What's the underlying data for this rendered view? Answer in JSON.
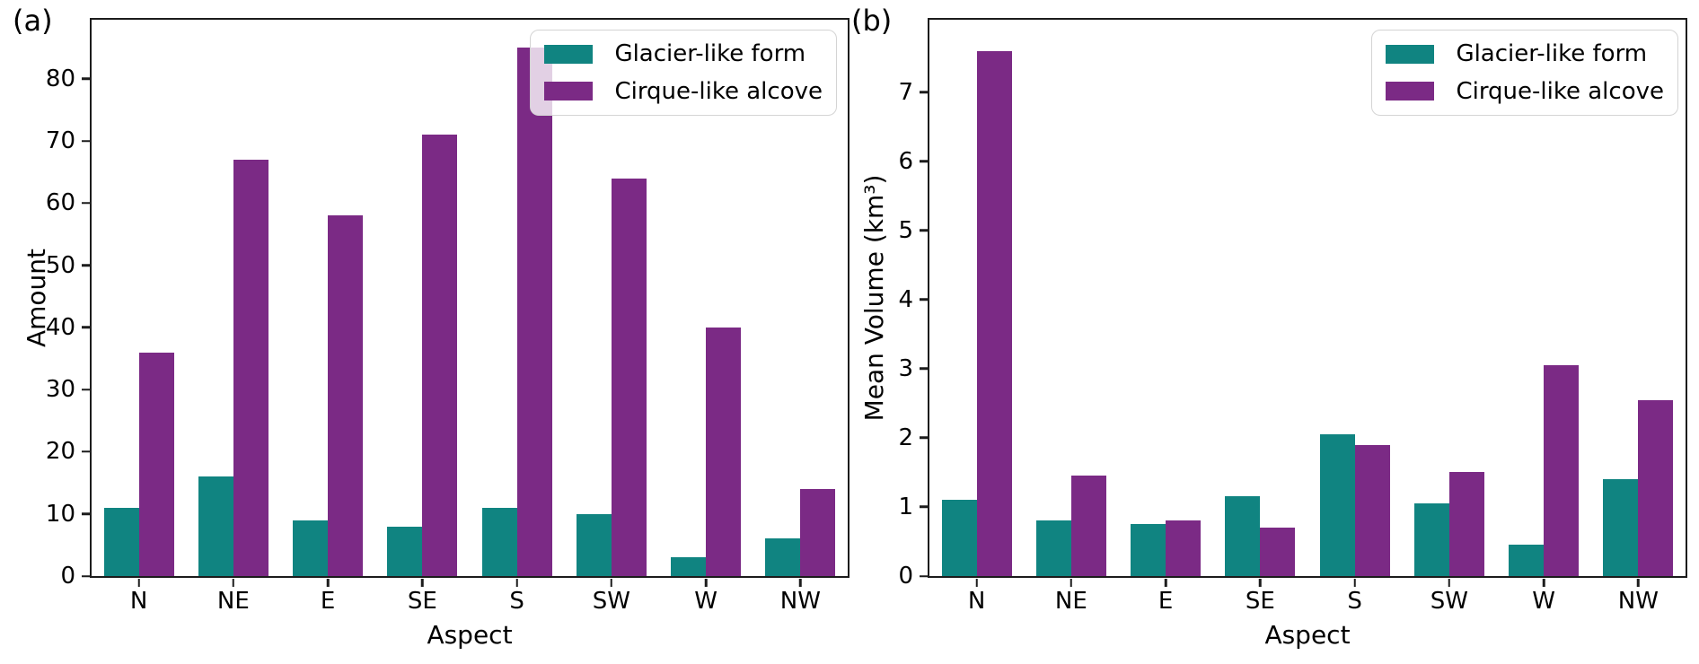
{
  "figure": {
    "background": "#ffffff",
    "text_color": "#000000",
    "spine_color": "#1c1c1c"
  },
  "chart_data": [
    {
      "type": "bar",
      "panel_label": "(a)",
      "categories": [
        "N",
        "NE",
        "E",
        "SE",
        "S",
        "SW",
        "W",
        "NW"
      ],
      "series": [
        {
          "name": "Glacier-like form",
          "color": "#108481",
          "values": [
            11,
            16,
            9,
            8,
            11,
            10,
            3,
            6
          ]
        },
        {
          "name": "Cirque-like alcove",
          "color": "#7B2A85",
          "values": [
            36,
            67,
            58,
            71,
            85,
            64,
            40,
            14
          ]
        }
      ],
      "xlabel": "Aspect",
      "ylabel": "Amount",
      "ylim": [
        0,
        89.5
      ],
      "yticks": [
        0,
        10,
        20,
        30,
        40,
        50,
        60,
        70,
        80
      ],
      "grid": false,
      "legend_position": "upper right"
    },
    {
      "type": "bar",
      "panel_label": "(b)",
      "categories": [
        "N",
        "NE",
        "E",
        "SE",
        "S",
        "SW",
        "W",
        "NW"
      ],
      "series": [
        {
          "name": "Glacier-like form",
          "color": "#108481",
          "values": [
            1.1,
            0.8,
            0.75,
            1.15,
            2.05,
            1.05,
            0.45,
            1.4
          ]
        },
        {
          "name": "Cirque-like alcove",
          "color": "#7B2A85",
          "values": [
            7.6,
            1.45,
            0.8,
            0.7,
            1.9,
            1.5,
            3.05,
            2.55
          ]
        }
      ],
      "xlabel": "Aspect",
      "ylabel": "Mean Volume (km³)",
      "ylim": [
        0,
        8.05
      ],
      "yticks": [
        0,
        1,
        2,
        3,
        4,
        5,
        6,
        7
      ],
      "grid": false,
      "legend_position": "upper right"
    }
  ]
}
